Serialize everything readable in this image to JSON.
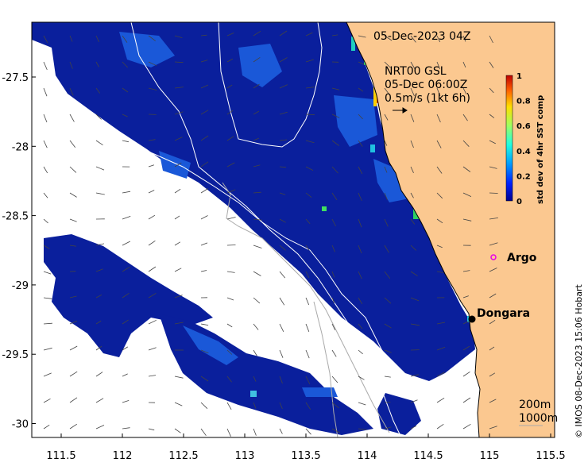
{
  "map": {
    "timestamp": "05-Dec-2023 04Z",
    "current_source": "NRT00 GSL",
    "current_time": "05-Dec 06:00Z",
    "current_scale": "0.5m/s (1kt 6h)",
    "credit": "© IMOS 08-Dec-2023 15:06 Hobart",
    "x_ticks": [
      "111.5",
      "112",
      "112.5",
      "113",
      "113.5",
      "114",
      "114.5",
      "115",
      "115.5"
    ],
    "y_ticks": [
      "-27.5",
      "-28",
      "-28.5",
      "-29",
      "-29.5",
      "-30"
    ],
    "places": [
      {
        "name": "Argo",
        "lon": 115.1,
        "lat": -28.83
      },
      {
        "name": "Dongara",
        "lon": 114.92,
        "lat": -29.25
      }
    ],
    "contours": [
      "200m",
      "1000m"
    ]
  },
  "colorbar": {
    "label": "std dev of 4hr SST comp",
    "ticks": [
      "0",
      "0.2",
      "0.4",
      "0.6",
      "0.8",
      "1"
    ],
    "colors": [
      "#00008f",
      "#0020ff",
      "#00a0ff",
      "#20ffdf",
      "#9fff60",
      "#ffdf00",
      "#ff6000",
      "#bf0000"
    ]
  },
  "colors": {
    "land": "#fbc890",
    "sst_low": "#0a1f9c",
    "sst_mid": "#1a58d8",
    "argo_marker": "#e800e8"
  }
}
